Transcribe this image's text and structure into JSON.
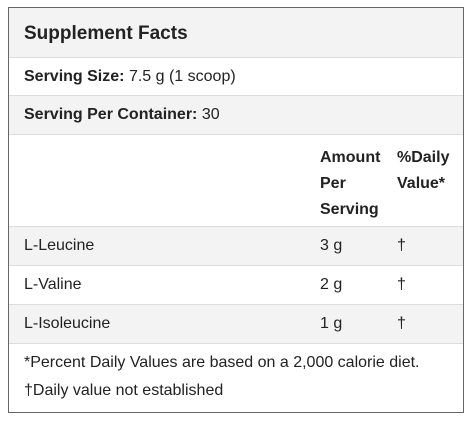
{
  "title": "Supplement Facts",
  "serving_size": {
    "label": "Serving Size:",
    "value": "7.5 g (1 scoop)"
  },
  "servings_per_container": {
    "label": "Serving Per Container:",
    "value": 30
  },
  "table": {
    "header": [
      "Amount Per Serving",
      "%Daily Value*"
    ],
    "rows": [
      [
        "L-Leucine",
        "3 g",
        "†"
      ],
      [
        "L-Valine",
        "2 g",
        "†"
      ],
      [
        "L-Isoleucine",
        "1 g",
        "†"
      ]
    ]
  },
  "footnotes": [
    "*Percent Daily Values are based on a 2,000 calorie diet.",
    "†Daily value not established"
  ]
}
